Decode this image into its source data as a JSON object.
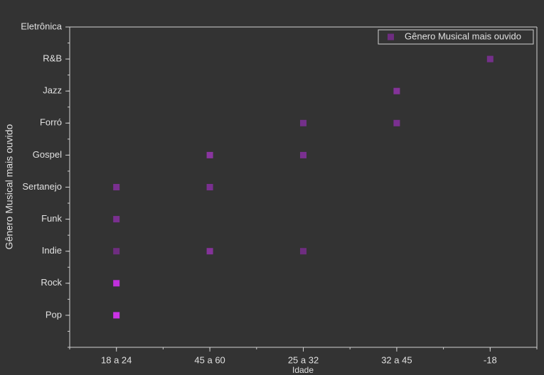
{
  "chart_data": {
    "type": "scatter",
    "x_label": "Idade",
    "y_label": "Gênero Musical mais ouvido",
    "x_categories": [
      "18 a 24",
      "45 a 60",
      "25 a 32",
      "32 a 45",
      "-18"
    ],
    "y_categories": [
      "Pop",
      "Rock",
      "Indie",
      "Funk",
      "Sertanejo",
      "Gospel",
      "Forró",
      "Jazz",
      "R&B",
      "Eletrônica"
    ],
    "legend": "top-right",
    "series": [
      {
        "name": "Gênero Musical mais ouvido",
        "color": "#6e2d80",
        "x": [
          "18 a 24",
          "18 a 24",
          "18 a 24",
          "18 a 24",
          "18 a 24",
          "45 a 60",
          "45 a 60",
          "45 a 60",
          "25 a 32",
          "25 a 32",
          "25 a 32",
          "32 a 45",
          "32 a 45",
          "-18"
        ],
        "y": [
          "Pop",
          "Rock",
          "Indie",
          "Funk",
          "Sertanejo",
          "Indie",
          "Sertanejo",
          "Gospel",
          "Indie",
          "Gospel",
          "Forró",
          "Forró",
          "Jazz",
          "R&B"
        ],
        "colors": [
          "#cc33e6",
          "#c030dc",
          "#6e2d80",
          "#7a3090",
          "#7a3090",
          "#843399",
          "#7a3090",
          "#8a35a0",
          "#6e2d80",
          "#7a3090",
          "#74308a",
          "#7a3090",
          "#843399",
          "#74308a"
        ]
      }
    ]
  }
}
